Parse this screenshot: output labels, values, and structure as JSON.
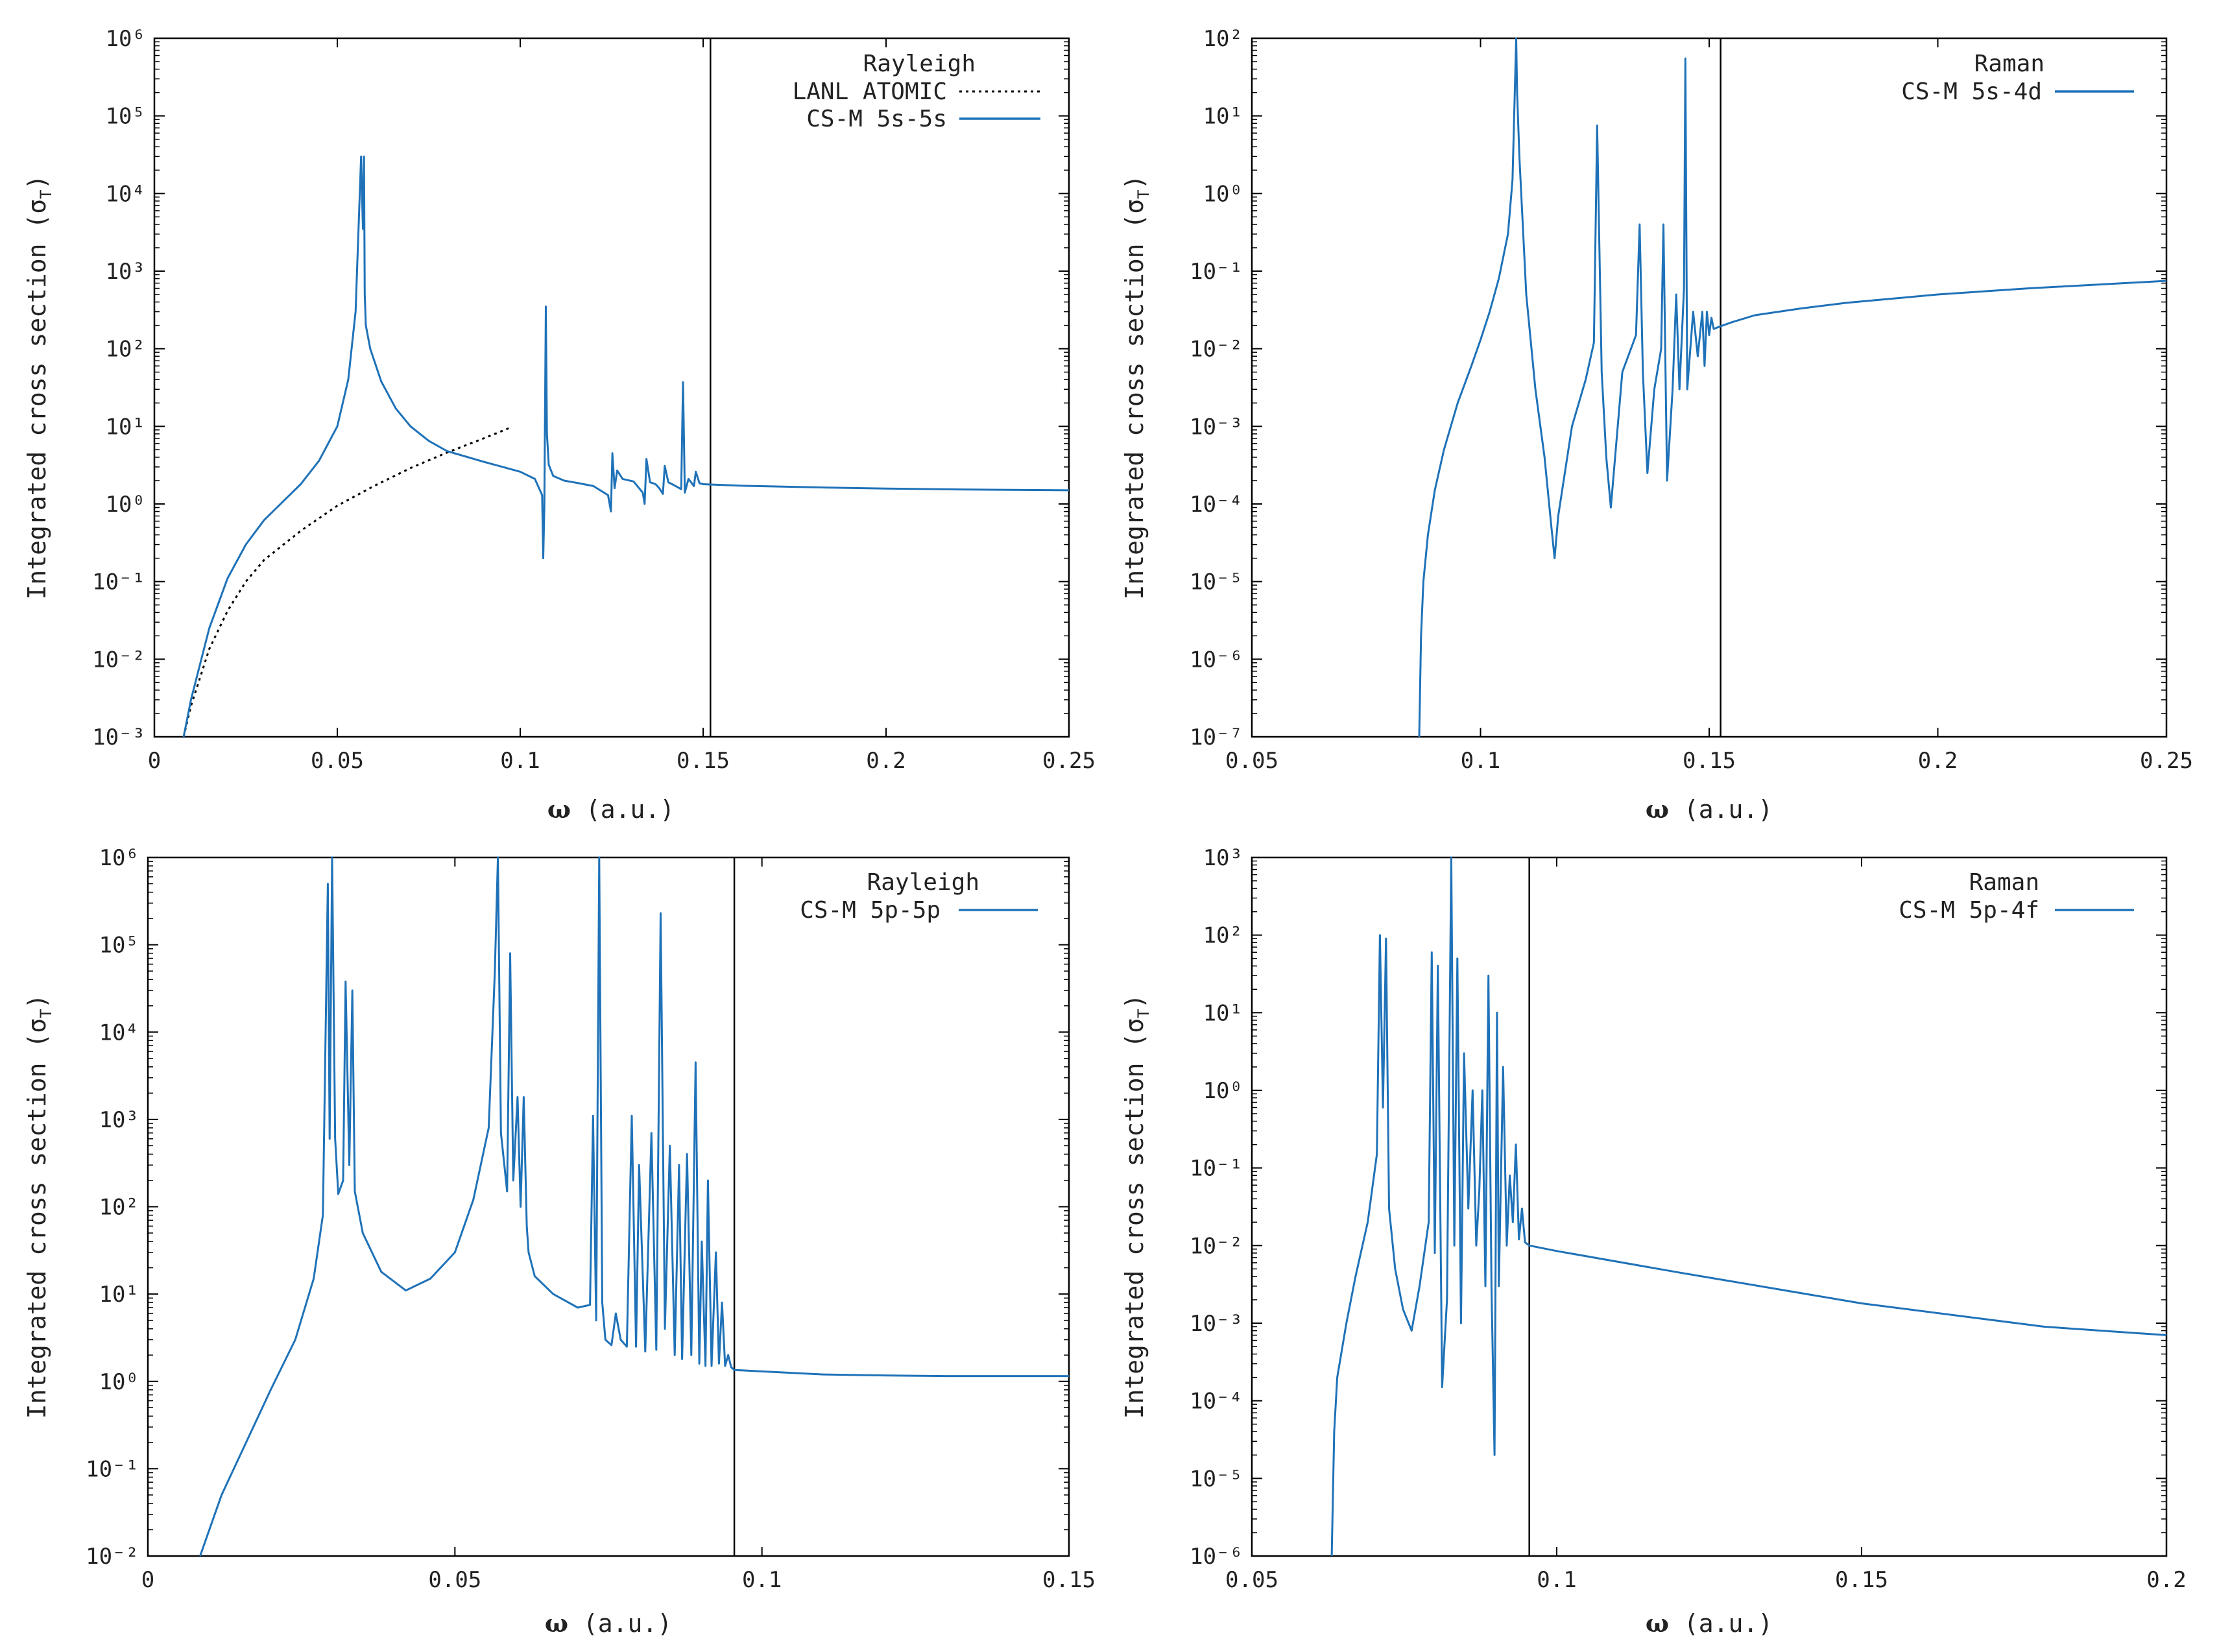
{
  "colors": {
    "series": "#1f72b8",
    "reference": "#000000",
    "threshold": "#000000"
  },
  "chart_data": [
    {
      "type": "line",
      "title": "",
      "xlabel_symbol": "ω",
      "xlabel_rest": " (a.u.)",
      "ylabel_main": "Integrated cross section (σ",
      "ylabel_sub": "T",
      "ylabel_close": ")",
      "yscale": "log",
      "xlim": [
        0,
        0.25
      ],
      "ylim_exp": [
        -3,
        6
      ],
      "xticks": [
        0,
        0.05,
        0.1,
        0.15,
        0.2,
        0.25
      ],
      "xtick_labels": [
        "0",
        "0.05",
        "0.1",
        "0.15",
        "0.2",
        "0.25"
      ],
      "yticks_exp": [
        -3,
        -2,
        -1,
        0,
        1,
        2,
        3,
        4,
        5,
        6
      ],
      "threshold_x": 0.152,
      "legend_title": "Rayleigh",
      "legend_position": "top-right",
      "series": [
        {
          "name": "LANL ATOMIC",
          "style": "dotted",
          "x": [
            0.008,
            0.01,
            0.015,
            0.02,
            0.025,
            0.03,
            0.04,
            0.05,
            0.06,
            0.07,
            0.08,
            0.09,
            0.097
          ],
          "y": [
            0.001,
            0.0025,
            0.0135,
            0.042,
            0.1,
            0.19,
            0.45,
            0.95,
            1.7,
            2.9,
            4.6,
            7.0,
            9.5
          ]
        },
        {
          "name": "CS-M 5s-5s",
          "style": "solid",
          "x": [
            0.008,
            0.01,
            0.015,
            0.02,
            0.025,
            0.03,
            0.04,
            0.045,
            0.05,
            0.053,
            0.055,
            0.0565,
            0.057,
            0.0573,
            0.0575,
            0.0578,
            0.059,
            0.062,
            0.066,
            0.07,
            0.075,
            0.08,
            0.09,
            0.1,
            0.104,
            0.106,
            0.1063,
            0.1066,
            0.107,
            0.1073,
            0.1078,
            0.109,
            0.112,
            0.116,
            0.12,
            0.124,
            0.1248,
            0.1252,
            0.1258,
            0.1265,
            0.128,
            0.131,
            0.1335,
            0.134,
            0.1345,
            0.1355,
            0.137,
            0.138,
            0.139,
            0.1395,
            0.1405,
            0.142,
            0.144,
            0.1445,
            0.145,
            0.146,
            0.1475,
            0.148,
            0.149,
            0.15,
            0.152,
            0.16,
            0.18,
            0.2,
            0.22,
            0.25
          ],
          "y": [
            0.001,
            0.003,
            0.025,
            0.11,
            0.3,
            0.62,
            1.8,
            3.6,
            10,
            40,
            300,
            30000,
            3500,
            30000,
            500,
            200,
            100,
            38,
            17,
            10,
            6.5,
            4.8,
            3.5,
            2.6,
            2.1,
            1.3,
            0.2,
            0.9,
            350,
            8,
            3.2,
            2.3,
            2.0,
            1.85,
            1.7,
            1.3,
            0.8,
            4.5,
            1.6,
            2.7,
            2.1,
            1.95,
            1.4,
            1.0,
            3.8,
            1.9,
            1.8,
            1.6,
            1.35,
            3.1,
            1.9,
            1.75,
            1.55,
            37,
            1.4,
            2.1,
            1.7,
            2.6,
            1.85,
            1.8,
            1.78,
            1.72,
            1.64,
            1.58,
            1.54,
            1.5
          ]
        }
      ]
    },
    {
      "type": "line",
      "title": "",
      "xlabel_symbol": "ω",
      "xlabel_rest": " (a.u.)",
      "ylabel_main": "Integrated cross section (σ",
      "ylabel_sub": "T",
      "ylabel_close": ")",
      "yscale": "log",
      "xlim": [
        0.05,
        0.25
      ],
      "ylim_exp": [
        -7,
        2
      ],
      "xticks": [
        0.05,
        0.1,
        0.15,
        0.2,
        0.25
      ],
      "xtick_labels": [
        "0.05",
        "0.1",
        "0.15",
        "0.2",
        "0.25"
      ],
      "yticks_exp": [
        -7,
        -6,
        -5,
        -4,
        -3,
        -2,
        -1,
        0,
        1,
        2
      ],
      "threshold_x": 0.1525,
      "legend_title": "Raman",
      "legend_position": "top-right",
      "series": [
        {
          "name": "CS-M 5s-4d",
          "style": "solid",
          "x": [
            0.0866,
            0.087,
            0.0875,
            0.0885,
            0.09,
            0.092,
            0.095,
            0.098,
            0.1,
            0.102,
            0.104,
            0.106,
            0.107,
            0.1078,
            0.108,
            0.1085,
            0.11,
            0.112,
            0.114,
            0.1155,
            0.1162,
            0.117,
            0.12,
            0.123,
            0.1248,
            0.1255,
            0.1265,
            0.1275,
            0.1285,
            0.131,
            0.134,
            0.1348,
            0.1355,
            0.1365,
            0.138,
            0.1395,
            0.14,
            0.1408,
            0.142,
            0.1428,
            0.1435,
            0.1445,
            0.1448,
            0.1452,
            0.1465,
            0.1475,
            0.1485,
            0.149,
            0.1495,
            0.15,
            0.1505,
            0.151,
            0.152,
            0.155,
            0.16,
            0.17,
            0.18,
            0.2,
            0.22,
            0.25
          ],
          "y": [
            1e-07,
            2e-06,
            1e-05,
            4e-05,
            0.00015,
            0.0005,
            0.002,
            0.006,
            0.013,
            0.03,
            0.08,
            0.3,
            1.5,
            100,
            20,
            3,
            0.05,
            0.003,
            0.0004,
            5e-05,
            2e-05,
            7e-05,
            0.001,
            0.004,
            0.012,
            7.5,
            0.005,
            0.0004,
            9e-05,
            0.005,
            0.015,
            0.4,
            0.005,
            0.00025,
            0.003,
            0.01,
            0.4,
            0.0002,
            0.003,
            0.05,
            0.003,
            0.06,
            55,
            0.003,
            0.03,
            0.008,
            0.03,
            0.006,
            0.03,
            0.015,
            0.025,
            0.018,
            0.019,
            0.022,
            0.027,
            0.033,
            0.039,
            0.05,
            0.06,
            0.075
          ]
        }
      ]
    },
    {
      "type": "line",
      "title": "",
      "xlabel_symbol": "ω",
      "xlabel_rest": " (a.u.)",
      "ylabel_main": "Integrated cross section (σ",
      "ylabel_sub": "T",
      "ylabel_close": ")",
      "yscale": "log",
      "xlim": [
        0,
        0.15
      ],
      "ylim_exp": [
        -2,
        6
      ],
      "xticks": [
        0,
        0.05,
        0.1,
        0.15
      ],
      "xtick_labels": [
        "0",
        "0.05",
        "0.1",
        "0.15"
      ],
      "yticks_exp": [
        -2,
        -1,
        0,
        1,
        2,
        3,
        4,
        5,
        6
      ],
      "threshold_x": 0.0955,
      "legend_title": "Rayleigh",
      "legend_position": "top-right",
      "series": [
        {
          "name": "CS-M 5p-5p",
          "style": "solid",
          "x": [
            0.0085,
            0.012,
            0.016,
            0.02,
            0.024,
            0.027,
            0.0285,
            0.0293,
            0.0296,
            0.03,
            0.0305,
            0.031,
            0.0318,
            0.0322,
            0.0328,
            0.0333,
            0.0337,
            0.035,
            0.038,
            0.042,
            0.046,
            0.05,
            0.053,
            0.0555,
            0.0565,
            0.057,
            0.0575,
            0.0585,
            0.059,
            0.0595,
            0.0602,
            0.0607,
            0.0612,
            0.0617,
            0.062,
            0.063,
            0.066,
            0.07,
            0.072,
            0.0725,
            0.073,
            0.0735,
            0.074,
            0.0745,
            0.0755,
            0.0762,
            0.077,
            0.078,
            0.0788,
            0.0795,
            0.08,
            0.081,
            0.082,
            0.0828,
            0.0835,
            0.0842,
            0.085,
            0.0858,
            0.0865,
            0.087,
            0.0878,
            0.0885,
            0.0892,
            0.0898,
            0.0902,
            0.0908,
            0.0912,
            0.0918,
            0.0925,
            0.093,
            0.0935,
            0.094,
            0.0945,
            0.095,
            0.0955,
            0.1,
            0.11,
            0.12,
            0.13,
            0.15
          ],
          "y": [
            0.01,
            0.05,
            0.2,
            0.8,
            3,
            15,
            80,
            500000,
            600,
            1000000,
            600,
            140,
            200,
            38000,
            300,
            30000,
            150,
            50,
            18,
            11,
            15,
            30,
            120,
            800,
            50000,
            1000000,
            700,
            150,
            80000,
            200,
            1800,
            100,
            1800,
            60,
            30,
            16,
            10,
            7,
            7.5,
            1100,
            5,
            1000000,
            8,
            3,
            2.6,
            6,
            3,
            2.5,
            1100,
            2.5,
            300,
            2.2,
            700,
            2.3,
            230000,
            4,
            500,
            2,
            300,
            1.8,
            400,
            2,
            4500,
            1.6,
            40,
            1.5,
            200,
            1.5,
            30,
            1.6,
            8,
            1.5,
            2,
            1.45,
            1.35,
            1.3,
            1.2,
            1.17,
            1.15,
            1.15
          ]
        }
      ]
    },
    {
      "type": "line",
      "title": "",
      "xlabel_symbol": "ω",
      "xlabel_rest": " (a.u.)",
      "ylabel_main": "Integrated cross section (σ",
      "ylabel_sub": "T",
      "ylabel_close": ")",
      "yscale": "log",
      "xlim": [
        0.05,
        0.2
      ],
      "ylim_exp": [
        -6,
        3
      ],
      "xticks": [
        0.05,
        0.1,
        0.15,
        0.2
      ],
      "xtick_labels": [
        "0.05",
        "0.1",
        "0.15",
        "0.2"
      ],
      "yticks_exp": [
        -6,
        -5,
        -4,
        -3,
        -2,
        -1,
        0,
        1,
        2,
        3
      ],
      "threshold_x": 0.0955,
      "legend_title": "Raman",
      "legend_position": "top-right",
      "series": [
        {
          "name": "CS-M 5p-4f",
          "style": "solid",
          "x": [
            0.0631,
            0.0635,
            0.064,
            0.0655,
            0.067,
            0.069,
            0.0705,
            0.071,
            0.0715,
            0.072,
            0.0725,
            0.0735,
            0.0748,
            0.0762,
            0.0775,
            0.079,
            0.0795,
            0.08,
            0.0805,
            0.0812,
            0.082,
            0.0827,
            0.0832,
            0.0837,
            0.0843,
            0.0848,
            0.0855,
            0.0862,
            0.0868,
            0.0873,
            0.0878,
            0.0883,
            0.0888,
            0.0893,
            0.0898,
            0.0902,
            0.0905,
            0.0912,
            0.0918,
            0.0923,
            0.0928,
            0.0933,
            0.0938,
            0.0943,
            0.0948,
            0.0955,
            0.1,
            0.12,
            0.15,
            0.18,
            0.2
          ],
          "y": [
            1e-06,
            4e-05,
            0.0002,
            0.001,
            0.004,
            0.02,
            0.15,
            100,
            0.6,
            90,
            0.03,
            0.005,
            0.0015,
            0.0008,
            0.003,
            0.02,
            60,
            0.008,
            40,
            0.00015,
            0.002,
            1000,
            0.01,
            50,
            0.001,
            3,
            0.03,
            1,
            0.01,
            0.05,
            1,
            0.003,
            30,
            0.003,
            2e-05,
            10,
            0.003,
            2,
            0.01,
            0.08,
            0.02,
            0.2,
            0.012,
            0.03,
            0.011,
            0.01,
            0.0085,
            0.0045,
            0.0018,
            0.0009,
            0.0007
          ]
        }
      ]
    }
  ]
}
